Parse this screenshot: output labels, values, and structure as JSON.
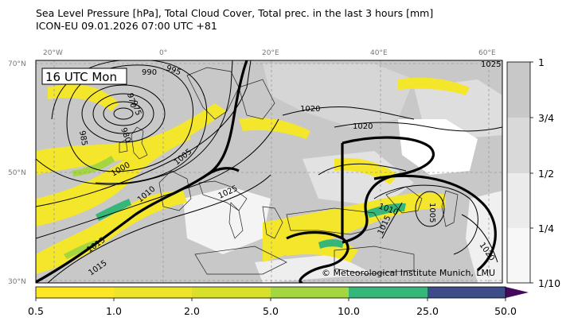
{
  "header": {
    "line1": "Sea Level Pressure [hPa], Total Cloud Cover, Total prec. in the last 3 hours [mm]",
    "line2": "ICON-EU 09.01.2026 07:00 UTC +81"
  },
  "map": {
    "time_label": "16 UTC Mon",
    "credit": "© Meteorological Institute Munich, LMU",
    "lon_labels": [
      "20°W",
      "0°",
      "20°E",
      "40°E",
      "60°E"
    ],
    "lat_labels": [
      "70°N",
      "50°N",
      "30°N"
    ],
    "isobar_labels": [
      "990",
      "995",
      "970",
      "975",
      "985",
      "980",
      "1000",
      "1005",
      "1010",
      "1015",
      "1020",
      "1025",
      "1025",
      "1020",
      "1010",
      "1015",
      "1005",
      "1020",
      "1015"
    ],
    "colors": {
      "cloud_full": "#c8c8c8",
      "cloud_mid": "#dcdcdc",
      "land_clear": "#ffffff",
      "precip_yellow": "#f4e62a",
      "precip_lime": "#a3d63f",
      "precip_green": "#35b779",
      "precip_navy": "#3e4c8a",
      "precip_purple": "#46085c"
    }
  },
  "cloud_colorbar": {
    "labels": [
      "1",
      "3/4",
      "1/2",
      "1/4",
      "1/10"
    ]
  },
  "precip_colorbar": {
    "labels": [
      "0.5",
      "1.0",
      "2.0",
      "5.0",
      "10.0",
      "25.0",
      "50.0"
    ]
  }
}
